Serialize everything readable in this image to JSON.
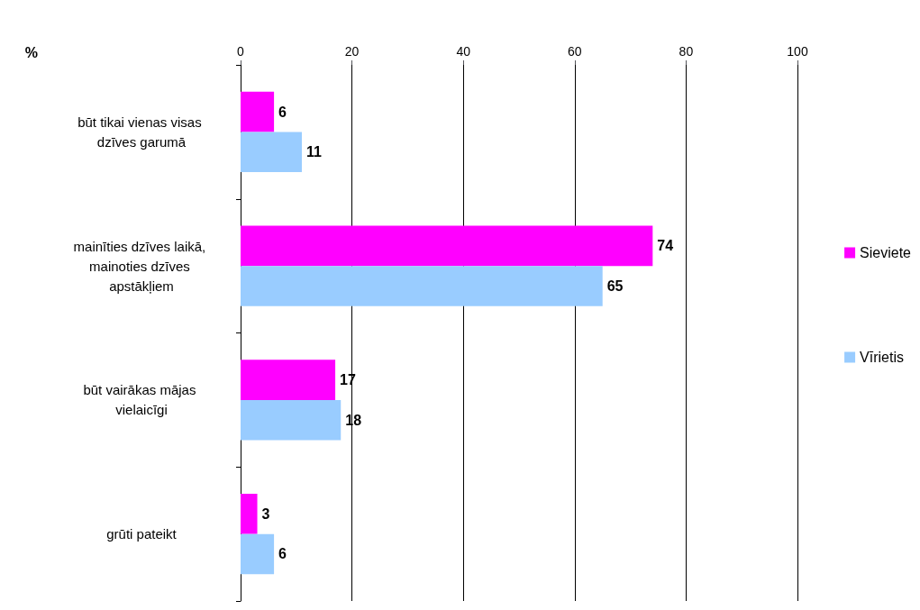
{
  "chart_data": {
    "type": "bar",
    "orientation": "horizontal",
    "ylabel": "%",
    "categories": [
      "būt tikai vienas visas dzīves garumā",
      "mainīties dzīves laikā, mainoties dzīves apstākļiem",
      "būt vairākas mājas vielaicīgi",
      "grūti pateikt"
    ],
    "series": [
      {
        "name": "Sieviete",
        "color": "#ff00ff",
        "values": [
          6,
          74,
          17,
          3
        ]
      },
      {
        "name": "Vīrietis",
        "color": "#99ccff",
        "values": [
          11,
          65,
          18,
          6
        ]
      }
    ],
    "xlim": [
      0,
      100
    ],
    "xticks": [
      0,
      20,
      40,
      60,
      80,
      100
    ],
    "grid": "x",
    "legend": "right",
    "data_labels": true
  }
}
